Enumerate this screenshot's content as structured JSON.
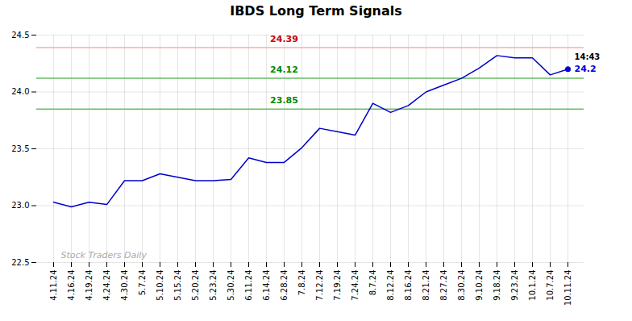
{
  "chart_data": {
    "type": "line",
    "title": "IBDS Long Term Signals",
    "categories": [
      "4.11.24",
      "4.16.24",
      "4.19.24",
      "4.24.24",
      "4.30.24",
      "5.7.24",
      "5.10.24",
      "5.15.24",
      "5.20.24",
      "5.23.24",
      "5.30.24",
      "6.11.24",
      "6.14.24",
      "6.28.24",
      "7.8.24",
      "7.12.24",
      "7.19.24",
      "7.24.24",
      "8.7.24",
      "8.12.24",
      "8.16.24",
      "8.21.24",
      "8.27.24",
      "8.30.24",
      "9.10.24",
      "9.18.24",
      "9.23.24",
      "10.1.24",
      "10.7.24",
      "10.11.24"
    ],
    "values": [
      23.03,
      22.99,
      23.03,
      23.01,
      23.22,
      23.22,
      23.28,
      23.25,
      23.22,
      23.22,
      23.23,
      23.42,
      23.38,
      23.38,
      23.51,
      23.68,
      23.65,
      23.62,
      23.9,
      23.82,
      23.88,
      24.0,
      24.06,
      24.12,
      24.21,
      24.32,
      24.3,
      24.3,
      24.15,
      24.2
    ],
    "color": "#0000cc",
    "ylim": [
      22.5,
      24.5
    ],
    "yticks": [
      22.5,
      {
        "value": 23.0,
        "label": "23.0"
      },
      23.5,
      {
        "value": 24.0,
        "label": "24.0"
      },
      24.5
    ],
    "grid": true,
    "reference_lines": [
      {
        "value": 24.39,
        "label": "24.39",
        "color": "#ffaaaa",
        "label_color": "#cc0000"
      },
      {
        "value": 24.12,
        "label": "24.12",
        "color": "#66bb66",
        "label_color": "#008800"
      },
      {
        "value": 23.85,
        "label": "23.85",
        "color": "#66bb66",
        "label_color": "#008800"
      }
    ],
    "last_time": {
      "text": "14:43",
      "color": "#000000"
    },
    "last_value": {
      "text": "24.2",
      "value": 24.2,
      "color": "#0000dd",
      "marker": "o"
    },
    "watermark": {
      "text": "Stock Traders Daily",
      "color": "#aaaaaa"
    }
  }
}
